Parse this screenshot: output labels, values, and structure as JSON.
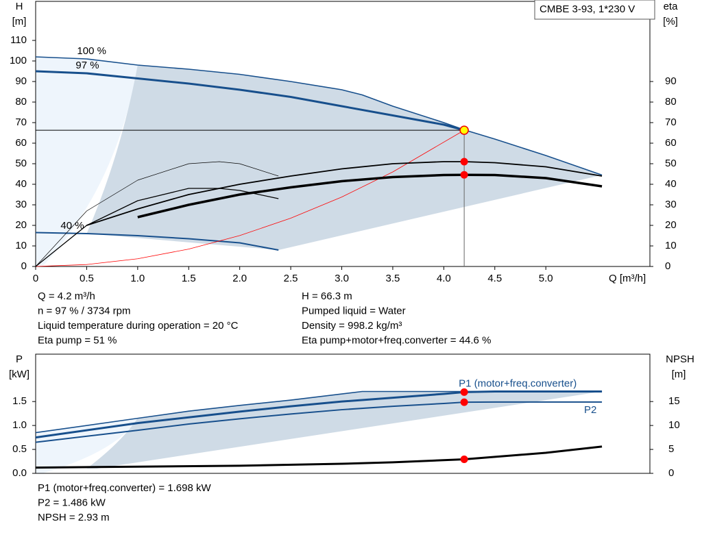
{
  "chart_data": [
    {
      "type": "line",
      "title": "CMBE 3-93, 1*230 V",
      "y_label": [
        "H",
        "[m]"
      ],
      "y2_label": [
        "eta",
        "[%]"
      ],
      "x_label": "Q [m³/h]",
      "xlim": [
        0,
        6.02
      ],
      "xticks": [
        0,
        0.5,
        {
          "value": 1,
          "label": "1.0"
        },
        1.5,
        {
          "value": 2,
          "label": "2.0"
        },
        2.5,
        {
          "value": 3,
          "label": "3.0"
        },
        3.5,
        {
          "value": 4,
          "label": "4.0"
        },
        4.5,
        {
          "value": 5,
          "label": "5.0"
        }
      ],
      "ylim": [
        0,
        129
      ],
      "yticks": [
        0,
        10,
        20,
        30,
        40,
        50,
        60,
        70,
        80,
        90,
        100,
        110
      ],
      "y2lim": [
        0,
        129
      ],
      "y2ticks": [
        0,
        10,
        20,
        30,
        40,
        50,
        60,
        70,
        80,
        90
      ],
      "series": [
        {
          "label": "100 %",
          "color": "#174f8c",
          "width": 1.6,
          "x": [
            0,
            0.5,
            1,
            1.5,
            2,
            2.5,
            3,
            3.2,
            3.5,
            4,
            4.2,
            4.5,
            5,
            5.55
          ],
          "values": [
            102,
            101,
            98,
            96,
            93.5,
            90,
            86,
            83.5,
            78,
            70,
            66.5,
            62,
            54,
            44.5
          ]
        },
        {
          "label": "97 %",
          "color": "#174f8c",
          "width": 3,
          "x": [
            0,
            0.5,
            1,
            1.5,
            2,
            2.5,
            3,
            3.5,
            4,
            4.2
          ],
          "values": [
            95,
            94,
            91.5,
            89,
            86,
            82.5,
            78,
            73.5,
            69,
            66.3
          ]
        },
        {
          "label": "40 %",
          "color": "#174f8c",
          "width": 2,
          "x": [
            0,
            0.5,
            1,
            1.5,
            2,
            2.38
          ],
          "values": [
            16.5,
            16,
            15,
            13.5,
            11.5,
            8
          ]
        },
        {
          "color": "#ff0000",
          "width": 0.8,
          "x": [
            0,
            0.5,
            1,
            1.5,
            2,
            2.5,
            3,
            3.5,
            4.2
          ],
          "values": [
            0,
            0.94,
            3.76,
            8.46,
            15.03,
            23.5,
            33.8,
            46,
            66.3
          ]
        },
        {
          "color": "#000000",
          "width": 1.8,
          "axis": "y2",
          "x": [
            0.5,
            1,
            1.5,
            2,
            2.5,
            3,
            3.5,
            4,
            4.2,
            4.5,
            5,
            5.55
          ],
          "values": [
            20,
            28,
            35,
            40,
            44,
            47.5,
            50,
            51,
            51,
            50.5,
            48.5,
            44
          ]
        },
        {
          "color": "#000000",
          "width": 3.5,
          "axis": "y2",
          "x": [
            1,
            1.5,
            2,
            2.5,
            3,
            3.5,
            4,
            4.2,
            4.5,
            5,
            5.55
          ],
          "values": [
            24,
            30,
            35,
            38.5,
            41.5,
            43.5,
            44.5,
            44.6,
            44.5,
            43,
            39
          ]
        },
        {
          "color": "#000000",
          "width": 0.7,
          "axis": "y2",
          "x": [
            0,
            0.5,
            1,
            1.5,
            1.8,
            2,
            2.38
          ],
          "values": [
            0,
            27,
            42,
            50,
            51,
            50,
            44
          ]
        },
        {
          "color": "#000000",
          "width": 1.3,
          "axis": "y2",
          "x": [
            0,
            0.5,
            1,
            1.5,
            1.8,
            2,
            2.38
          ],
          "values": [
            0,
            20,
            32,
            38,
            38,
            37,
            33
          ]
        }
      ],
      "operating_point": {
        "q": 4.2,
        "h": 66.3,
        "eta_pump": 51,
        "eta_total": 44.6
      }
    },
    {
      "type": "line",
      "y_label": [
        "P",
        "[kW]"
      ],
      "y2_label": [
        "NPSH",
        "[m]"
      ],
      "xlim": [
        0,
        6.02
      ],
      "ylim": [
        0,
        2.49
      ],
      "yticks": [
        {
          "value": 0,
          "label": "0.0"
        },
        0.5,
        {
          "value": 1,
          "label": "1.0"
        },
        1.5
      ],
      "y2lim": [
        0,
        24.9
      ],
      "y2ticks": [
        0,
        5,
        10,
        15
      ],
      "series": [
        {
          "color": "#174f8c",
          "width": 1.6,
          "x": [
            0,
            1,
            1.5,
            2,
            2.5,
            3.2,
            5.55
          ],
          "values": [
            0.85,
            1.15,
            1.3,
            1.42,
            1.53,
            1.71,
            1.71
          ]
        },
        {
          "label": "P1 (motor+freq.converter)",
          "color": "#174f8c",
          "width": 3,
          "x": [
            0,
            1,
            1.5,
            2,
            2.5,
            3,
            3.5,
            4,
            4.2,
            4.5,
            5.55
          ],
          "values": [
            0.75,
            1.05,
            1.17,
            1.29,
            1.4,
            1.5,
            1.58,
            1.66,
            1.698,
            1.71,
            1.71
          ]
        },
        {
          "label": "P2",
          "color": "#174f8c",
          "width": 2,
          "x": [
            0,
            1,
            1.5,
            2,
            2.5,
            3,
            3.5,
            4,
            4.2,
            4.5,
            5.55
          ],
          "values": [
            0.65,
            0.9,
            1.03,
            1.14,
            1.24,
            1.33,
            1.4,
            1.46,
            1.486,
            1.49,
            1.49
          ]
        },
        {
          "color": "#000000",
          "width": 3,
          "axis": "y2",
          "x": [
            0,
            1,
            2,
            3,
            3.5,
            4.2,
            5,
            5.55
          ],
          "values": [
            1.2,
            1.4,
            1.6,
            2,
            2.3,
            2.93,
            4.3,
            5.6
          ]
        }
      ],
      "operating_point": {
        "q": 4.2,
        "p1": 1.698,
        "p2": 1.486,
        "npsh": 2.93
      }
    }
  ],
  "info": {
    "left": [
      "Q = 4.2 m³/h",
      "n = 97 % / 3734 rpm",
      "Liquid temperature during operation = 20 °C",
      "Eta pump = 51 %"
    ],
    "right": [
      "H = 66.3 m",
      "Pumped liquid = Water",
      "Density = 998.2 kg/m³",
      "Eta pump+motor+freq.converter = 44.6 %"
    ],
    "lower": [
      "P1 (motor+freq.converter) = 1.698 kW",
      "P2 = 1.486 kW",
      "NPSH = 2.93 m"
    ]
  }
}
